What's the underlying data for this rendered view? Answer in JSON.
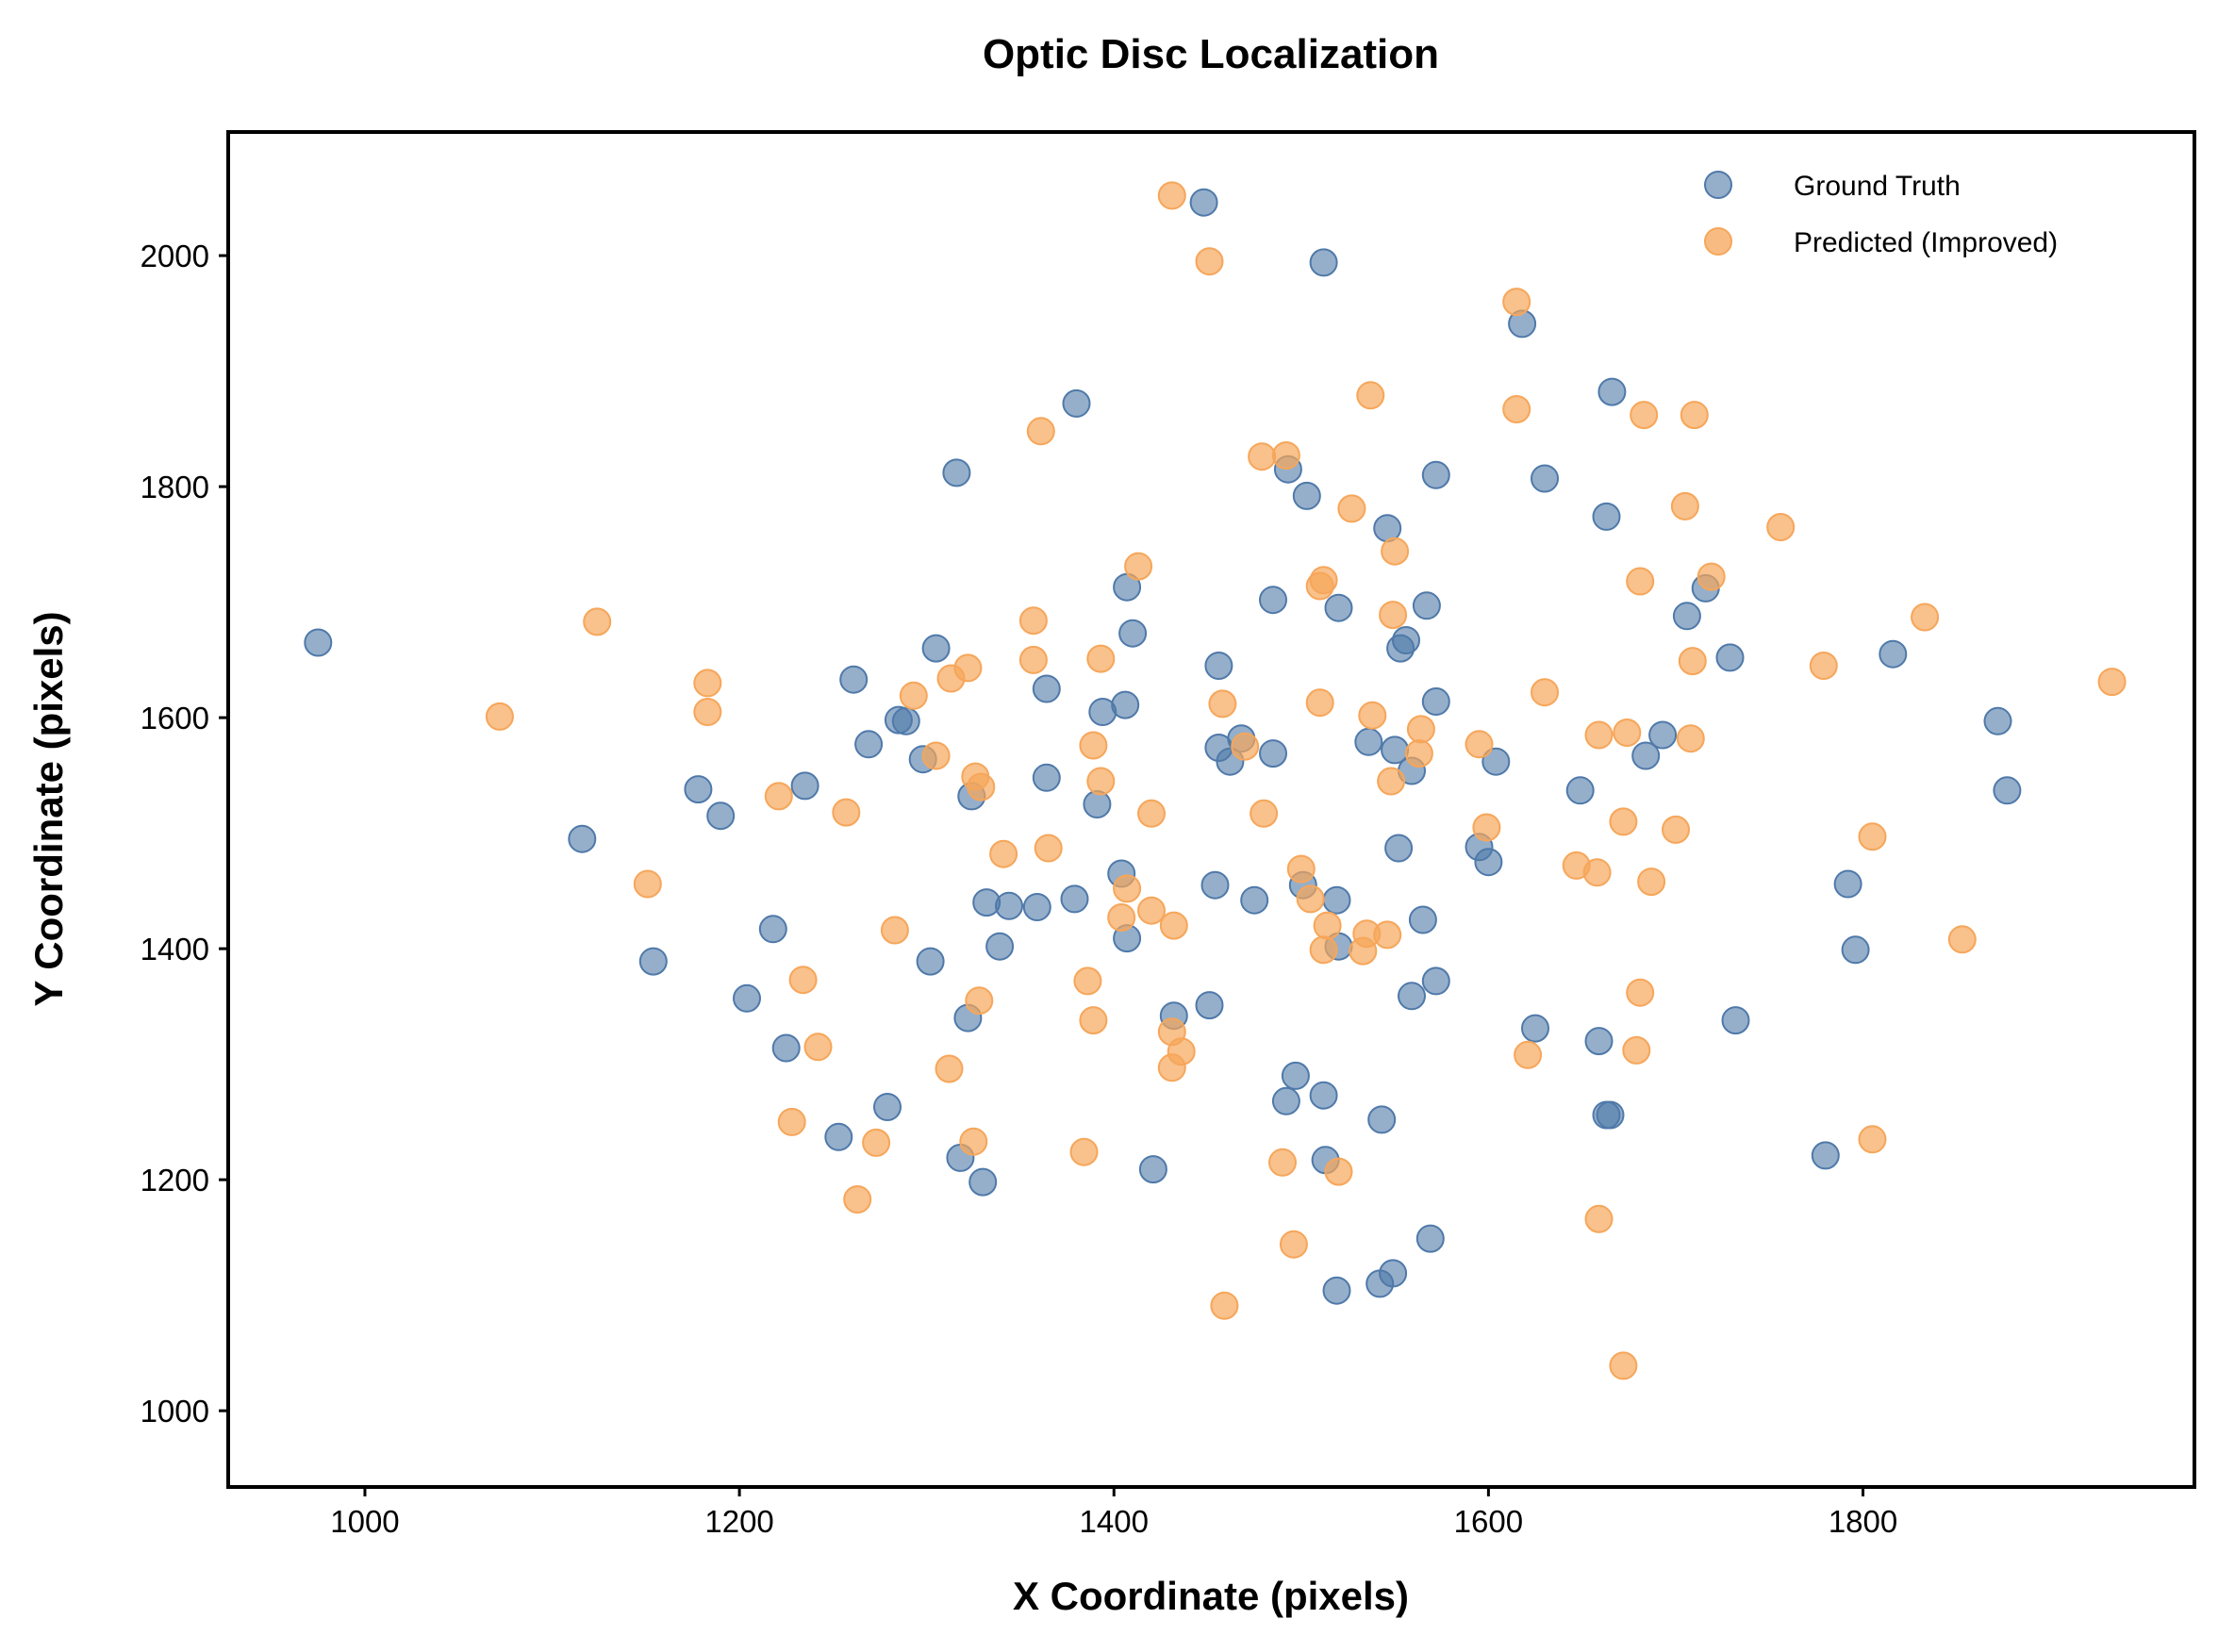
{
  "chart_data": {
    "type": "scatter",
    "title": "Optic Disc Localization",
    "xlabel": "X Coordinate (pixels)",
    "ylabel": "Y Coordinate (pixels)",
    "xlim": [
      927,
      1977
    ],
    "ylim": [
      934,
      2107
    ],
    "xticks": [
      1000,
      1200,
      1400,
      1600,
      1800
    ],
    "yticks": [
      1000,
      1200,
      1400,
      1600,
      1800,
      2000
    ],
    "grid": false,
    "legend_position": "top-right",
    "series": [
      {
        "name": "Ground Truth",
        "color": "#4f79a9",
        "points": [
          [
            975,
            1665
          ],
          [
            1116,
            1495
          ],
          [
            1154,
            1389
          ],
          [
            1178,
            1538
          ],
          [
            1190,
            1515
          ],
          [
            1204,
            1357
          ],
          [
            1218,
            1417
          ],
          [
            1225,
            1314
          ],
          [
            1235,
            1541
          ],
          [
            1253,
            1237
          ],
          [
            1261,
            1633
          ],
          [
            1269,
            1577
          ],
          [
            1279,
            1263
          ],
          [
            1285,
            1598
          ],
          [
            1289,
            1597
          ],
          [
            1298,
            1564
          ],
          [
            1302,
            1389
          ],
          [
            1305,
            1660
          ],
          [
            1316,
            1812
          ],
          [
            1318,
            1219
          ],
          [
            1322,
            1340
          ],
          [
            1324,
            1532
          ],
          [
            1330,
            1198
          ],
          [
            1332,
            1440
          ],
          [
            1339,
            1402
          ],
          [
            1344,
            1437
          ],
          [
            1359,
            1436
          ],
          [
            1364,
            1625
          ],
          [
            1364,
            1548
          ],
          [
            1379,
            1443
          ],
          [
            1380,
            1872
          ],
          [
            1391,
            1525
          ],
          [
            1394,
            1605
          ],
          [
            1404,
            1465
          ],
          [
            1406,
            1611
          ],
          [
            1407,
            1713
          ],
          [
            1407,
            1409
          ],
          [
            1410,
            1673
          ],
          [
            1421,
            1209
          ],
          [
            1432,
            1342
          ],
          [
            1448,
            2046
          ],
          [
            1451,
            1351
          ],
          [
            1454,
            1455
          ],
          [
            1456,
            1574
          ],
          [
            1456,
            1645
          ],
          [
            1462,
            1562
          ],
          [
            1468,
            1582
          ],
          [
            1475,
            1442
          ],
          [
            1485,
            1569
          ],
          [
            1485,
            1702
          ],
          [
            1492,
            1268
          ],
          [
            1493,
            1815
          ],
          [
            1497,
            1290
          ],
          [
            1501,
            1455
          ],
          [
            1503,
            1792
          ],
          [
            1512,
            1273
          ],
          [
            1512,
            1994
          ],
          [
            1513,
            1217
          ],
          [
            1519,
            1442
          ],
          [
            1519,
            1104
          ],
          [
            1520,
            1402
          ],
          [
            1520,
            1695
          ],
          [
            1536,
            1579
          ],
          [
            1542,
            1110
          ],
          [
            1543,
            1252
          ],
          [
            1546,
            1764
          ],
          [
            1549,
            1119
          ],
          [
            1550,
            1572
          ],
          [
            1552,
            1487
          ],
          [
            1553,
            1660
          ],
          [
            1556,
            1667
          ],
          [
            1559,
            1359
          ],
          [
            1559,
            1554
          ],
          [
            1565,
            1425
          ],
          [
            1567,
            1697
          ],
          [
            1569,
            1149
          ],
          [
            1572,
            1810
          ],
          [
            1572,
            1372
          ],
          [
            1572,
            1614
          ],
          [
            1595,
            1488
          ],
          [
            1600,
            1475
          ],
          [
            1604,
            1562
          ],
          [
            1618,
            1941
          ],
          [
            1625,
            1331
          ],
          [
            1630,
            1807
          ],
          [
            1649,
            1537
          ],
          [
            1659,
            1320
          ],
          [
            1663,
            1256
          ],
          [
            1663,
            1774
          ],
          [
            1665,
            1256
          ],
          [
            1666,
            1882
          ],
          [
            1684,
            1567
          ],
          [
            1693,
            1585
          ],
          [
            1706,
            1688
          ],
          [
            1716,
            1712
          ],
          [
            1729,
            1652
          ],
          [
            1732,
            1338
          ],
          [
            1780,
            1221
          ],
          [
            1792,
            1456
          ],
          [
            1796,
            1399
          ],
          [
            1816,
            1655
          ],
          [
            1872,
            1597
          ],
          [
            1877,
            1537
          ]
        ]
      },
      {
        "name": "Predicted (Improved)",
        "color": "#f6a65a",
        "points": [
          [
            1072,
            1601
          ],
          [
            1124,
            1683
          ],
          [
            1151,
            1456
          ],
          [
            1183,
            1630
          ],
          [
            1183,
            1605
          ],
          [
            1221,
            1532
          ],
          [
            1234,
            1373
          ],
          [
            1242,
            1315
          ],
          [
            1228,
            1250
          ],
          [
            1257,
            1518
          ],
          [
            1263,
            1183
          ],
          [
            1273,
            1232
          ],
          [
            1283,
            1416
          ],
          [
            1293,
            1619
          ],
          [
            1305,
            1567
          ],
          [
            1312,
            1296
          ],
          [
            1313,
            1634
          ],
          [
            1322,
            1643
          ],
          [
            1325,
            1233
          ],
          [
            1326,
            1549
          ],
          [
            1328,
            1355
          ],
          [
            1329,
            1540
          ],
          [
            1341,
            1482
          ],
          [
            1357,
            1684
          ],
          [
            1357,
            1650
          ],
          [
            1361,
            1848
          ],
          [
            1365,
            1487
          ],
          [
            1384,
            1224
          ],
          [
            1386,
            1372
          ],
          [
            1389,
            1576
          ],
          [
            1389,
            1338
          ],
          [
            1393,
            1651
          ],
          [
            1393,
            1545
          ],
          [
            1404,
            1427
          ],
          [
            1407,
            1452
          ],
          [
            1413,
            1731
          ],
          [
            1420,
            1433
          ],
          [
            1420,
            1517
          ],
          [
            1431,
            1328
          ],
          [
            1431,
            1297
          ],
          [
            1431,
            2052
          ],
          [
            1432,
            1420
          ],
          [
            1436,
            1311
          ],
          [
            1451,
            1995
          ],
          [
            1458,
            1612
          ],
          [
            1459,
            1091
          ],
          [
            1470,
            1575
          ],
          [
            1479,
            1826
          ],
          [
            1480,
            1517
          ],
          [
            1490,
            1215
          ],
          [
            1492,
            1827
          ],
          [
            1496,
            1144
          ],
          [
            1500,
            1469
          ],
          [
            1505,
            1443
          ],
          [
            1510,
            1613
          ],
          [
            1510,
            1714
          ],
          [
            1512,
            1719
          ],
          [
            1512,
            1399
          ],
          [
            1514,
            1420
          ],
          [
            1520,
            1207
          ],
          [
            1527,
            1781
          ],
          [
            1533,
            1398
          ],
          [
            1535,
            1413
          ],
          [
            1537,
            1879
          ],
          [
            1538,
            1602
          ],
          [
            1546,
            1412
          ],
          [
            1548,
            1545
          ],
          [
            1549,
            1689
          ],
          [
            1550,
            1744
          ],
          [
            1563,
            1569
          ],
          [
            1564,
            1590
          ],
          [
            1595,
            1577
          ],
          [
            1599,
            1505
          ],
          [
            1615,
            1960
          ],
          [
            1615,
            1867
          ],
          [
            1621,
            1308
          ],
          [
            1630,
            1622
          ],
          [
            1647,
            1472
          ],
          [
            1658,
            1466
          ],
          [
            1659,
            1166
          ],
          [
            1659,
            1585
          ],
          [
            1672,
            1039
          ],
          [
            1672,
            1510
          ],
          [
            1674,
            1587
          ],
          [
            1679,
            1312
          ],
          [
            1681,
            1362
          ],
          [
            1681,
            1718
          ],
          [
            1683,
            1862
          ],
          [
            1687,
            1458
          ],
          [
            1700,
            1503
          ],
          [
            1705,
            1783
          ],
          [
            1708,
            1582
          ],
          [
            1709,
            1649
          ],
          [
            1710,
            1862
          ],
          [
            1719,
            1722
          ],
          [
            1756,
            1765
          ],
          [
            1779,
            1645
          ],
          [
            1805,
            1497
          ],
          [
            1805,
            1235
          ],
          [
            1833,
            1687
          ],
          [
            1853,
            1408
          ],
          [
            1933,
            1631
          ]
        ]
      }
    ]
  }
}
